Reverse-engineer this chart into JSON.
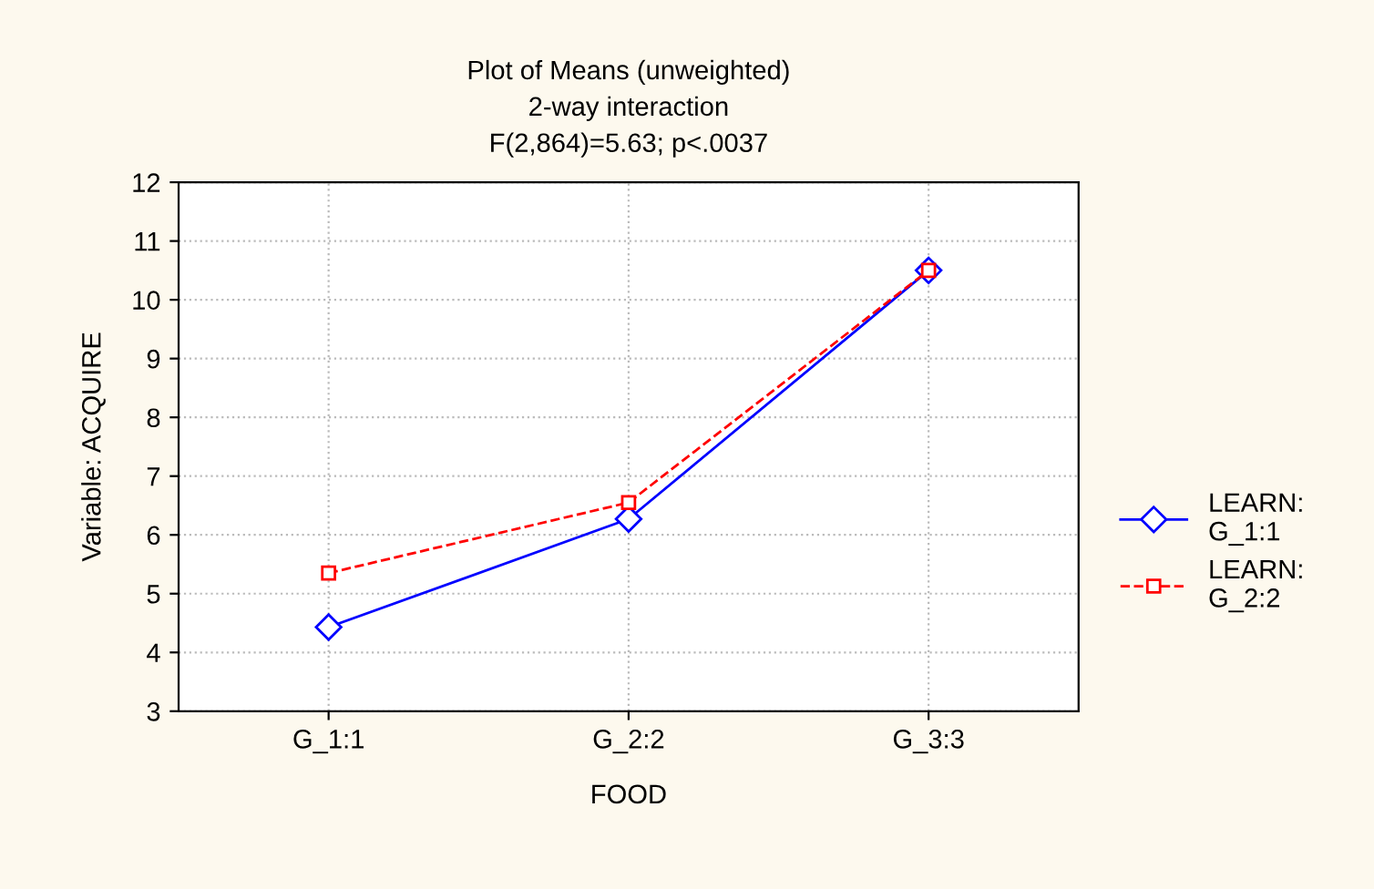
{
  "chart_data": {
    "type": "line",
    "title": "Plot of Means (unweighted)\n2-way interaction\nF(2,864)=5.63; p<.0037",
    "xlabel": "FOOD",
    "ylabel": "Variable: ACQUIRE",
    "categories": [
      "G_1:1",
      "G_2:2",
      "G_3:3"
    ],
    "series": [
      {
        "name": "LEARN:\nG_1:1",
        "color": "#0000ff",
        "marker": "diamond",
        "line_style": "solid",
        "values": [
          4.43,
          6.27,
          10.5
        ]
      },
      {
        "name": "LEARN:\nG_2:2",
        "color": "#ff0000",
        "marker": "square",
        "line_style": "dashed",
        "values": [
          5.35,
          6.55,
          10.5
        ]
      }
    ],
    "ylim": [
      3,
      12
    ],
    "yticks": [
      3,
      4,
      5,
      6,
      7,
      8,
      9,
      10,
      11,
      12
    ],
    "grid": true,
    "legend": "right"
  }
}
